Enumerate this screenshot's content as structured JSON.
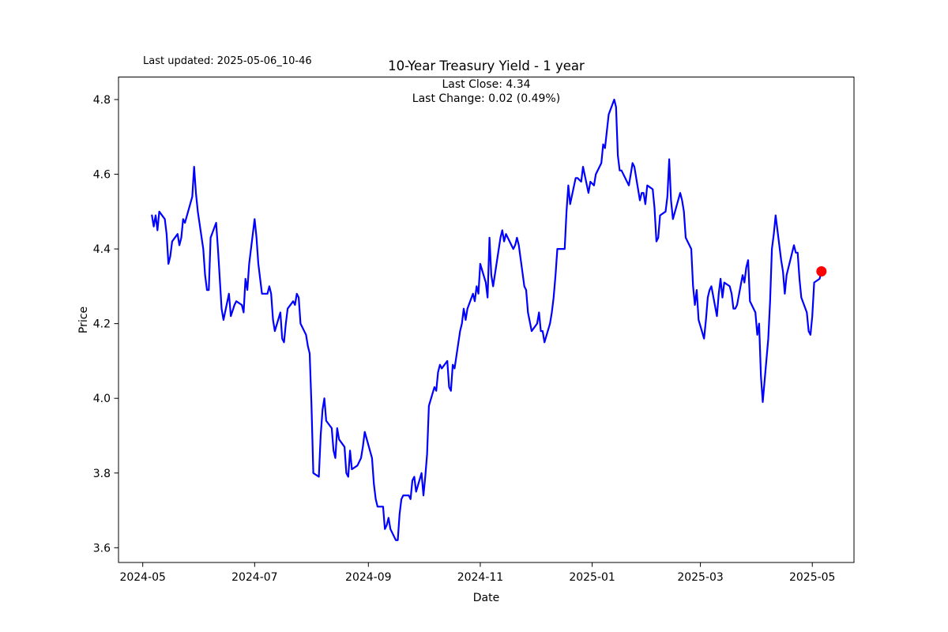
{
  "figure": {
    "last_updated_label": "Last updated: 2025-05-06_10-46"
  },
  "chart_data": {
    "type": "line",
    "title": "10-Year Treasury Yield - 1 year",
    "subtitle_line1": "Last Close: 4.34",
    "subtitle_line2": "Last Change: 0.02 (0.49%)",
    "last_close": 4.34,
    "last_change": 0.02,
    "last_change_pct": "0.49%",
    "xlabel": "Date",
    "ylabel": "Price",
    "grid": false,
    "legend": "none",
    "line_color": "#0000ff",
    "marker_color": "#ff0000",
    "ylim": [
      3.56,
      4.86
    ],
    "xlim": [
      "2024-04-18",
      "2025-05-24"
    ],
    "y_tick_labels": [
      "3.6",
      "3.8",
      "4.0",
      "4.2",
      "4.4",
      "4.6",
      "4.8"
    ],
    "x_tick_labels": [
      "2024-05",
      "2024-07",
      "2024-09",
      "2024-11",
      "2025-01",
      "2025-03",
      "2025-05"
    ],
    "points": [
      [
        "2024-05-06",
        4.49
      ],
      [
        "2024-05-07",
        4.46
      ],
      [
        "2024-05-08",
        4.49
      ],
      [
        "2024-05-09",
        4.45
      ],
      [
        "2024-05-10",
        4.5
      ],
      [
        "2024-05-13",
        4.48
      ],
      [
        "2024-05-14",
        4.44
      ],
      [
        "2024-05-15",
        4.36
      ],
      [
        "2024-05-16",
        4.38
      ],
      [
        "2024-05-17",
        4.42
      ],
      [
        "2024-05-20",
        4.44
      ],
      [
        "2024-05-21",
        4.41
      ],
      [
        "2024-05-22",
        4.43
      ],
      [
        "2024-05-23",
        4.48
      ],
      [
        "2024-05-24",
        4.47
      ],
      [
        "2024-05-28",
        4.54
      ],
      [
        "2024-05-29",
        4.62
      ],
      [
        "2024-05-30",
        4.55
      ],
      [
        "2024-05-31",
        4.5
      ],
      [
        "2024-06-03",
        4.4
      ],
      [
        "2024-06-04",
        4.33
      ],
      [
        "2024-06-05",
        4.29
      ],
      [
        "2024-06-06",
        4.29
      ],
      [
        "2024-06-07",
        4.43
      ],
      [
        "2024-06-10",
        4.47
      ],
      [
        "2024-06-11",
        4.4
      ],
      [
        "2024-06-12",
        4.32
      ],
      [
        "2024-06-13",
        4.24
      ],
      [
        "2024-06-14",
        4.21
      ],
      [
        "2024-06-17",
        4.28
      ],
      [
        "2024-06-18",
        4.22
      ],
      [
        "2024-06-20",
        4.25
      ],
      [
        "2024-06-21",
        4.26
      ],
      [
        "2024-06-24",
        4.25
      ],
      [
        "2024-06-25",
        4.23
      ],
      [
        "2024-06-26",
        4.32
      ],
      [
        "2024-06-27",
        4.29
      ],
      [
        "2024-06-28",
        4.36
      ],
      [
        "2024-07-01",
        4.48
      ],
      [
        "2024-07-02",
        4.43
      ],
      [
        "2024-07-03",
        4.36
      ],
      [
        "2024-07-05",
        4.28
      ],
      [
        "2024-07-08",
        4.28
      ],
      [
        "2024-07-09",
        4.3
      ],
      [
        "2024-07-10",
        4.28
      ],
      [
        "2024-07-11",
        4.21
      ],
      [
        "2024-07-12",
        4.18
      ],
      [
        "2024-07-15",
        4.23
      ],
      [
        "2024-07-16",
        4.16
      ],
      [
        "2024-07-17",
        4.15
      ],
      [
        "2024-07-18",
        4.2
      ],
      [
        "2024-07-19",
        4.24
      ],
      [
        "2024-07-22",
        4.26
      ],
      [
        "2024-07-23",
        4.25
      ],
      [
        "2024-07-24",
        4.28
      ],
      [
        "2024-07-25",
        4.27
      ],
      [
        "2024-07-26",
        4.2
      ],
      [
        "2024-07-29",
        4.17
      ],
      [
        "2024-07-30",
        4.14
      ],
      [
        "2024-07-31",
        4.12
      ],
      [
        "2024-08-01",
        3.98
      ],
      [
        "2024-08-02",
        3.8
      ],
      [
        "2024-08-05",
        3.79
      ],
      [
        "2024-08-06",
        3.9
      ],
      [
        "2024-08-07",
        3.97
      ],
      [
        "2024-08-08",
        4.0
      ],
      [
        "2024-08-09",
        3.94
      ],
      [
        "2024-08-12",
        3.92
      ],
      [
        "2024-08-13",
        3.86
      ],
      [
        "2024-08-14",
        3.84
      ],
      [
        "2024-08-15",
        3.92
      ],
      [
        "2024-08-16",
        3.89
      ],
      [
        "2024-08-19",
        3.87
      ],
      [
        "2024-08-20",
        3.8
      ],
      [
        "2024-08-21",
        3.79
      ],
      [
        "2024-08-22",
        3.86
      ],
      [
        "2024-08-23",
        3.81
      ],
      [
        "2024-08-26",
        3.82
      ],
      [
        "2024-08-27",
        3.83
      ],
      [
        "2024-08-28",
        3.84
      ],
      [
        "2024-08-29",
        3.87
      ],
      [
        "2024-08-30",
        3.91
      ],
      [
        "2024-09-03",
        3.84
      ],
      [
        "2024-09-04",
        3.77
      ],
      [
        "2024-09-05",
        3.73
      ],
      [
        "2024-09-06",
        3.71
      ],
      [
        "2024-09-09",
        3.71
      ],
      [
        "2024-09-10",
        3.65
      ],
      [
        "2024-09-11",
        3.66
      ],
      [
        "2024-09-12",
        3.68
      ],
      [
        "2024-09-13",
        3.65
      ],
      [
        "2024-09-16",
        3.62
      ],
      [
        "2024-09-17",
        3.62
      ],
      [
        "2024-09-18",
        3.69
      ],
      [
        "2024-09-19",
        3.73
      ],
      [
        "2024-09-20",
        3.74
      ],
      [
        "2024-09-23",
        3.74
      ],
      [
        "2024-09-24",
        3.73
      ],
      [
        "2024-09-25",
        3.78
      ],
      [
        "2024-09-26",
        3.79
      ],
      [
        "2024-09-27",
        3.75
      ],
      [
        "2024-09-30",
        3.8
      ],
      [
        "2024-10-01",
        3.74
      ],
      [
        "2024-10-02",
        3.79
      ],
      [
        "2024-10-03",
        3.85
      ],
      [
        "2024-10-04",
        3.98
      ],
      [
        "2024-10-07",
        4.03
      ],
      [
        "2024-10-08",
        4.02
      ],
      [
        "2024-10-09",
        4.07
      ],
      [
        "2024-10-10",
        4.09
      ],
      [
        "2024-10-11",
        4.08
      ],
      [
        "2024-10-14",
        4.1
      ],
      [
        "2024-10-15",
        4.03
      ],
      [
        "2024-10-16",
        4.02
      ],
      [
        "2024-10-17",
        4.09
      ],
      [
        "2024-10-18",
        4.08
      ],
      [
        "2024-10-21",
        4.18
      ],
      [
        "2024-10-22",
        4.2
      ],
      [
        "2024-10-23",
        4.24
      ],
      [
        "2024-10-24",
        4.21
      ],
      [
        "2024-10-25",
        4.24
      ],
      [
        "2024-10-28",
        4.28
      ],
      [
        "2024-10-29",
        4.26
      ],
      [
        "2024-10-30",
        4.3
      ],
      [
        "2024-10-31",
        4.28
      ],
      [
        "2024-11-01",
        4.36
      ],
      [
        "2024-11-04",
        4.31
      ],
      [
        "2024-11-05",
        4.27
      ],
      [
        "2024-11-06",
        4.43
      ],
      [
        "2024-11-07",
        4.33
      ],
      [
        "2024-11-08",
        4.3
      ],
      [
        "2024-11-12",
        4.43
      ],
      [
        "2024-11-13",
        4.45
      ],
      [
        "2024-11-14",
        4.42
      ],
      [
        "2024-11-15",
        4.44
      ],
      [
        "2024-11-18",
        4.41
      ],
      [
        "2024-11-19",
        4.4
      ],
      [
        "2024-11-20",
        4.41
      ],
      [
        "2024-11-21",
        4.43
      ],
      [
        "2024-11-22",
        4.41
      ],
      [
        "2024-11-25",
        4.3
      ],
      [
        "2024-11-26",
        4.29
      ],
      [
        "2024-11-27",
        4.23
      ],
      [
        "2024-11-29",
        4.18
      ],
      [
        "2024-12-02",
        4.2
      ],
      [
        "2024-12-03",
        4.23
      ],
      [
        "2024-12-04",
        4.18
      ],
      [
        "2024-12-05",
        4.18
      ],
      [
        "2024-12-06",
        4.15
      ],
      [
        "2024-12-09",
        4.2
      ],
      [
        "2024-12-10",
        4.23
      ],
      [
        "2024-12-11",
        4.27
      ],
      [
        "2024-12-12",
        4.33
      ],
      [
        "2024-12-13",
        4.4
      ],
      [
        "2024-12-16",
        4.4
      ],
      [
        "2024-12-17",
        4.4
      ],
      [
        "2024-12-18",
        4.5
      ],
      [
        "2024-12-19",
        4.57
      ],
      [
        "2024-12-20",
        4.52
      ],
      [
        "2024-12-23",
        4.59
      ],
      [
        "2024-12-24",
        4.59
      ],
      [
        "2024-12-26",
        4.58
      ],
      [
        "2024-12-27",
        4.62
      ],
      [
        "2024-12-30",
        4.55
      ],
      [
        "2024-12-31",
        4.58
      ],
      [
        "2025-01-02",
        4.57
      ],
      [
        "2025-01-03",
        4.6
      ],
      [
        "2025-01-06",
        4.63
      ],
      [
        "2025-01-07",
        4.68
      ],
      [
        "2025-01-08",
        4.67
      ],
      [
        "2025-01-10",
        4.76
      ],
      [
        "2025-01-13",
        4.8
      ],
      [
        "2025-01-14",
        4.78
      ],
      [
        "2025-01-15",
        4.65
      ],
      [
        "2025-01-16",
        4.61
      ],
      [
        "2025-01-17",
        4.61
      ],
      [
        "2025-01-21",
        4.57
      ],
      [
        "2025-01-22",
        4.6
      ],
      [
        "2025-01-23",
        4.63
      ],
      [
        "2025-01-24",
        4.62
      ],
      [
        "2025-01-27",
        4.53
      ],
      [
        "2025-01-28",
        4.55
      ],
      [
        "2025-01-29",
        4.55
      ],
      [
        "2025-01-30",
        4.52
      ],
      [
        "2025-01-31",
        4.57
      ],
      [
        "2025-02-03",
        4.56
      ],
      [
        "2025-02-04",
        4.51
      ],
      [
        "2025-02-05",
        4.42
      ],
      [
        "2025-02-06",
        4.43
      ],
      [
        "2025-02-07",
        4.49
      ],
      [
        "2025-02-10",
        4.5
      ],
      [
        "2025-02-11",
        4.54
      ],
      [
        "2025-02-12",
        4.64
      ],
      [
        "2025-02-13",
        4.53
      ],
      [
        "2025-02-14",
        4.48
      ],
      [
        "2025-02-18",
        4.55
      ],
      [
        "2025-02-19",
        4.53
      ],
      [
        "2025-02-20",
        4.5
      ],
      [
        "2025-02-21",
        4.43
      ],
      [
        "2025-02-24",
        4.4
      ],
      [
        "2025-02-25",
        4.3
      ],
      [
        "2025-02-26",
        4.25
      ],
      [
        "2025-02-27",
        4.29
      ],
      [
        "2025-02-28",
        4.21
      ],
      [
        "2025-03-03",
        4.16
      ],
      [
        "2025-03-04",
        4.21
      ],
      [
        "2025-03-05",
        4.27
      ],
      [
        "2025-03-06",
        4.29
      ],
      [
        "2025-03-07",
        4.3
      ],
      [
        "2025-03-10",
        4.22
      ],
      [
        "2025-03-11",
        4.28
      ],
      [
        "2025-03-12",
        4.32
      ],
      [
        "2025-03-13",
        4.27
      ],
      [
        "2025-03-14",
        4.31
      ],
      [
        "2025-03-17",
        4.3
      ],
      [
        "2025-03-18",
        4.28
      ],
      [
        "2025-03-19",
        4.24
      ],
      [
        "2025-03-20",
        4.24
      ],
      [
        "2025-03-21",
        4.25
      ],
      [
        "2025-03-24",
        4.33
      ],
      [
        "2025-03-25",
        4.31
      ],
      [
        "2025-03-26",
        4.35
      ],
      [
        "2025-03-27",
        4.37
      ],
      [
        "2025-03-28",
        4.26
      ],
      [
        "2025-03-31",
        4.23
      ],
      [
        "2025-04-01",
        4.17
      ],
      [
        "2025-04-02",
        4.2
      ],
      [
        "2025-04-03",
        4.06
      ],
      [
        "2025-04-04",
        3.99
      ],
      [
        "2025-04-07",
        4.16
      ],
      [
        "2025-04-08",
        4.26
      ],
      [
        "2025-04-09",
        4.4
      ],
      [
        "2025-04-10",
        4.44
      ],
      [
        "2025-04-11",
        4.49
      ],
      [
        "2025-04-14",
        4.37
      ],
      [
        "2025-04-15",
        4.34
      ],
      [
        "2025-04-16",
        4.28
      ],
      [
        "2025-04-17",
        4.33
      ],
      [
        "2025-04-21",
        4.41
      ],
      [
        "2025-04-22",
        4.39
      ],
      [
        "2025-04-23",
        4.39
      ],
      [
        "2025-04-24",
        4.32
      ],
      [
        "2025-04-25",
        4.27
      ],
      [
        "2025-04-28",
        4.23
      ],
      [
        "2025-04-29",
        4.18
      ],
      [
        "2025-04-30",
        4.17
      ],
      [
        "2025-05-01",
        4.22
      ],
      [
        "2025-05-02",
        4.31
      ],
      [
        "2025-05-05",
        4.32
      ],
      [
        "2025-05-06",
        4.34
      ]
    ]
  }
}
